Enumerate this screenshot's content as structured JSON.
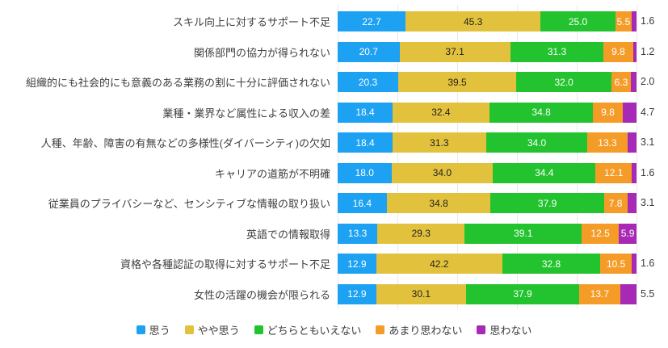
{
  "chart_data": {
    "type": "bar",
    "orientation": "horizontal",
    "stacked": true,
    "value_unit": "%",
    "title": "",
    "xlabel": "",
    "ylabel": "",
    "xlim": [
      0,
      100
    ],
    "gridline_interval": 20,
    "grid": true,
    "legend_position": "bottom",
    "categories": [
      "スキル向上に対するサポート不足",
      "関係部門の協力が得られない",
      "組織的にも社会的にも意義のある業務の割に十分に評価されない",
      "業種・業界など属性による収入の差",
      "人種、年齢、障害の有無などの多様性(ダイバーシティ)の欠如",
      "キャリアの道筋が不明確",
      "従業員のプライバシーなど、センシティブな情報の取り扱い",
      "英語での情報取得",
      "資格や各種認証の取得に対するサポート不足",
      "女性の活躍の機会が限られる"
    ],
    "series": [
      {
        "name": "思う",
        "color": "#1DA1F2",
        "label_color": "#ffffff",
        "values": [
          22.7,
          20.7,
          20.3,
          18.4,
          18.4,
          18.0,
          16.4,
          13.3,
          12.9,
          12.9
        ]
      },
      {
        "name": "やや思う",
        "color": "#E2C23C",
        "label_color": "#222222",
        "values": [
          45.3,
          37.1,
          39.5,
          32.4,
          31.3,
          34.0,
          34.8,
          29.3,
          42.2,
          30.1
        ]
      },
      {
        "name": "どちらともいえない",
        "color": "#22C32E",
        "label_color": "#ffffff",
        "values": [
          25.0,
          31.3,
          32.0,
          34.8,
          34.0,
          34.4,
          37.9,
          39.1,
          32.8,
          37.9
        ]
      },
      {
        "name": "あまり思わない",
        "color": "#F59C28",
        "label_color": "#ffffff",
        "values": [
          5.5,
          9.8,
          6.3,
          9.8,
          13.3,
          12.1,
          7.8,
          12.5,
          10.5,
          13.7
        ]
      },
      {
        "name": "思わない",
        "color": "#A62AB5",
        "label_color": "#ffffff",
        "values": [
          1.6,
          1.2,
          2.0,
          4.7,
          3.1,
          1.6,
          3.1,
          5.9,
          1.6,
          5.5
        ]
      }
    ],
    "last_label_inside": [
      false,
      false,
      false,
      false,
      false,
      false,
      false,
      true,
      false,
      false
    ],
    "outside_label_color": "#3a3a3a",
    "gridline_color": "#e9e9e9"
  },
  "legend": {
    "items": [
      {
        "label": "思う",
        "color": "#1DA1F2"
      },
      {
        "label": "やや思う",
        "color": "#E2C23C"
      },
      {
        "label": "どちらともいえない",
        "color": "#22C32E"
      },
      {
        "label": "あまり思わない",
        "color": "#F59C28"
      },
      {
        "label": "思わない",
        "color": "#A62AB5"
      }
    ]
  }
}
